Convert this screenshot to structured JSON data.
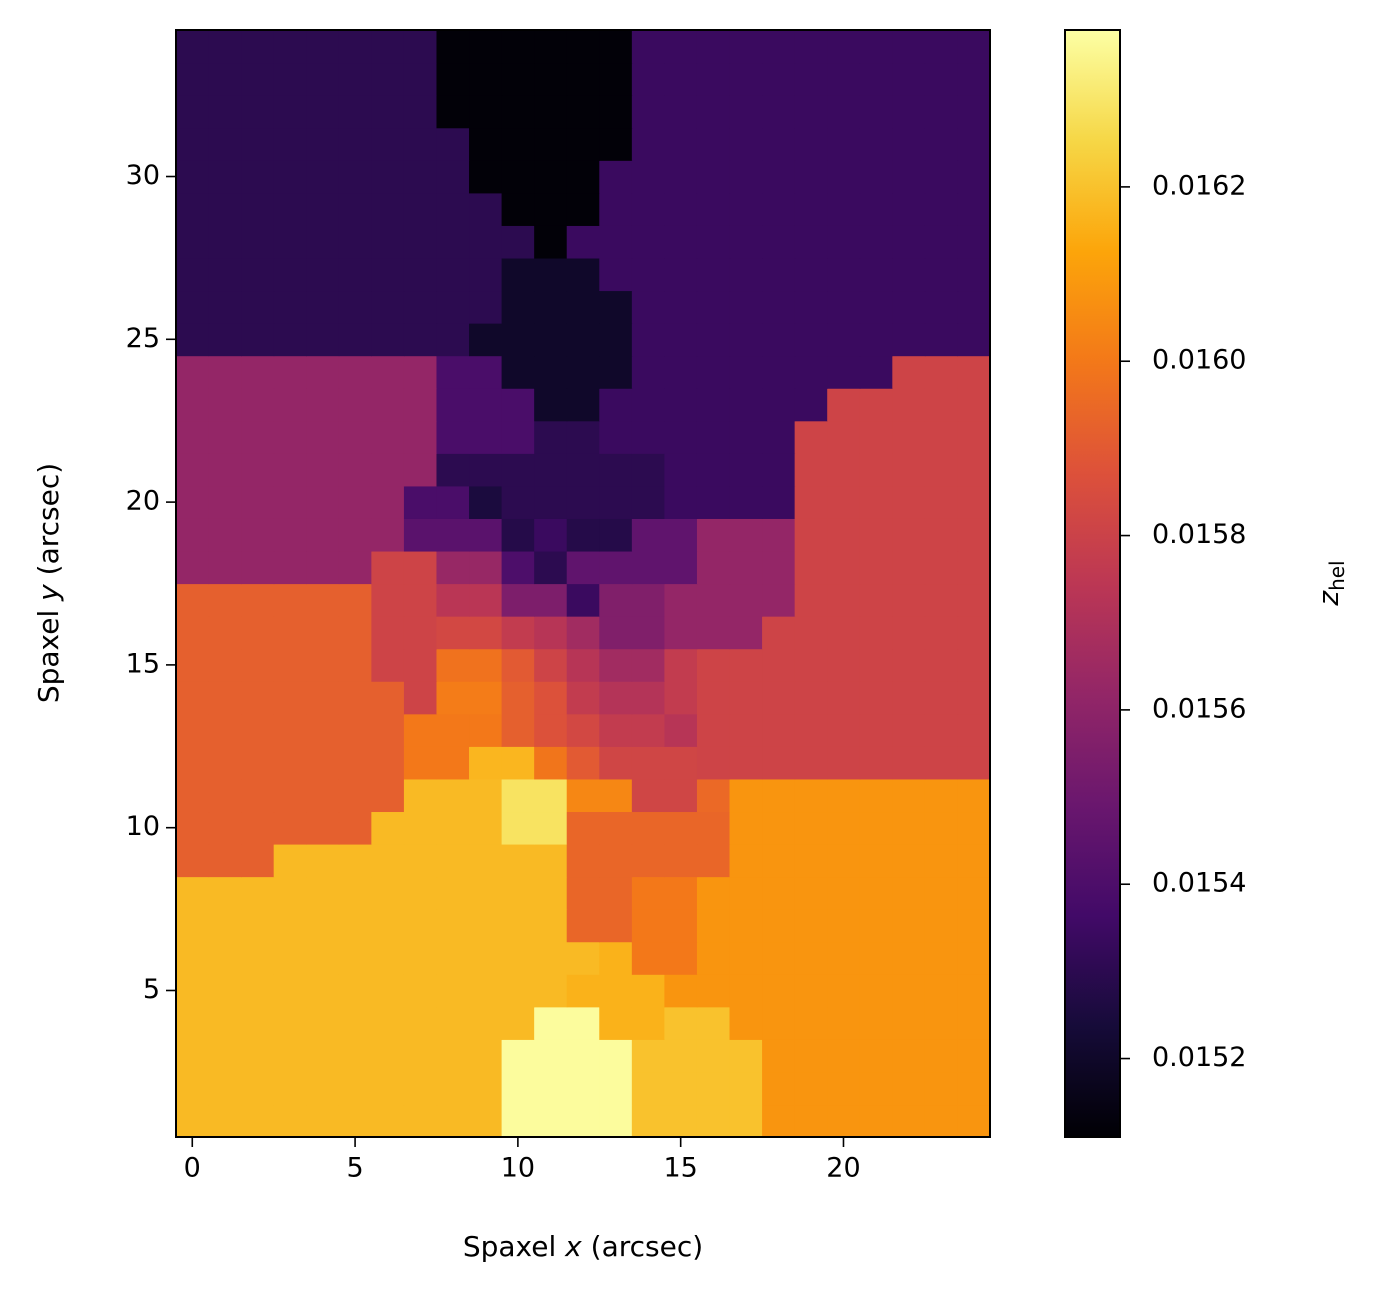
{
  "chart_data": {
    "type": "heatmap",
    "xlabel": [
      "Spaxel ",
      "x",
      " (arcsec)"
    ],
    "ylabel": [
      "Spaxel ",
      "y",
      " (arcsec)"
    ],
    "colorbar_label": "z",
    "colorbar_label_subscript": "hel",
    "colormap": "inferno",
    "x": [
      0,
      1,
      2,
      3,
      4,
      5,
      6,
      7,
      8,
      9,
      10,
      11,
      12,
      13,
      14,
      15,
      16,
      17,
      18,
      19,
      20,
      21,
      22,
      23,
      24
    ],
    "y": [
      1,
      2,
      3,
      4,
      5,
      6,
      7,
      8,
      9,
      10,
      11,
      12,
      13,
      14,
      15,
      16,
      17,
      18,
      19,
      20,
      21,
      22,
      23,
      24,
      25,
      26,
      27,
      28,
      29,
      30,
      31,
      32,
      33,
      34
    ],
    "xlim": [
      -0.5,
      24.5
    ],
    "ylim": [
      0.5,
      34.5
    ],
    "xticks": [
      0,
      5,
      10,
      15,
      20
    ],
    "yticks": [
      5,
      10,
      15,
      20,
      25,
      30
    ],
    "clim": [
      0.01511,
      0.01638
    ],
    "cticks": [
      0.0152,
      0.0154,
      0.0156,
      0.0158,
      {
        "value": 0.016,
        "label": "0.0160"
      },
      0.0162
    ],
    "z": [
      [
        0.01618,
        0.01618,
        0.01618,
        0.01618,
        0.01618,
        0.01618,
        0.01618,
        0.01618,
        0.01618,
        0.01618,
        0.01637,
        0.01637,
        0.01637,
        0.01637,
        0.0162,
        0.0162,
        0.0162,
        0.0162,
        0.01608,
        0.01608,
        0.01608,
        0.01608,
        0.01608,
        0.01608,
        0.01608
      ],
      [
        0.01618,
        0.01618,
        0.01618,
        0.01618,
        0.01618,
        0.01618,
        0.01618,
        0.01618,
        0.01618,
        0.01618,
        0.01637,
        0.01637,
        0.01637,
        0.01637,
        0.0162,
        0.0162,
        0.0162,
        0.0162,
        0.01608,
        0.01608,
        0.01608,
        0.01608,
        0.01608,
        0.01608,
        0.01608
      ],
      [
        0.01618,
        0.01618,
        0.01618,
        0.01618,
        0.01618,
        0.01618,
        0.01618,
        0.01618,
        0.01618,
        0.01618,
        0.01637,
        0.01637,
        0.01637,
        0.01637,
        0.0162,
        0.0162,
        0.0162,
        0.0162,
        0.01608,
        0.01608,
        0.01608,
        0.01608,
        0.01608,
        0.01608,
        0.01608
      ],
      [
        0.01618,
        0.01618,
        0.01618,
        0.01618,
        0.01618,
        0.01618,
        0.01618,
        0.01618,
        0.01618,
        0.01618,
        0.01618,
        0.01637,
        0.01637,
        0.01616,
        0.01616,
        0.0162,
        0.0162,
        0.01608,
        0.01608,
        0.01608,
        0.01608,
        0.01608,
        0.01608,
        0.01608,
        0.01608
      ],
      [
        0.01618,
        0.01618,
        0.01618,
        0.01618,
        0.01618,
        0.01618,
        0.01618,
        0.01618,
        0.01618,
        0.01618,
        0.01618,
        0.01618,
        0.01616,
        0.01616,
        0.01616,
        0.01608,
        0.01608,
        0.01608,
        0.01608,
        0.01608,
        0.01608,
        0.01608,
        0.01608,
        0.01608,
        0.01608
      ],
      [
        0.01618,
        0.01618,
        0.01618,
        0.01618,
        0.01618,
        0.01618,
        0.01618,
        0.01618,
        0.01618,
        0.01618,
        0.01618,
        0.01618,
        0.01618,
        0.01616,
        0.016,
        0.016,
        0.01608,
        0.01608,
        0.01608,
        0.01608,
        0.01608,
        0.01608,
        0.01608,
        0.01608,
        0.01608
      ],
      [
        0.01618,
        0.01618,
        0.01618,
        0.01618,
        0.01618,
        0.01618,
        0.01618,
        0.01618,
        0.01618,
        0.01618,
        0.01618,
        0.01618,
        0.01594,
        0.01594,
        0.016,
        0.016,
        0.01608,
        0.01608,
        0.01608,
        0.01608,
        0.01608,
        0.01608,
        0.01608,
        0.01608,
        0.01608
      ],
      [
        0.01618,
        0.01618,
        0.01618,
        0.01618,
        0.01618,
        0.01618,
        0.01618,
        0.01618,
        0.01618,
        0.01618,
        0.01618,
        0.01618,
        0.01594,
        0.01594,
        0.016,
        0.016,
        0.01608,
        0.01608,
        0.01608,
        0.01608,
        0.01608,
        0.01608,
        0.01608,
        0.01608,
        0.01608
      ],
      [
        0.01592,
        0.01592,
        0.01592,
        0.01618,
        0.01618,
        0.01618,
        0.01618,
        0.01618,
        0.01618,
        0.01618,
        0.01618,
        0.01618,
        0.01594,
        0.01594,
        0.01594,
        0.01594,
        0.01594,
        0.01608,
        0.01608,
        0.01608,
        0.01608,
        0.01608,
        0.01608,
        0.01608,
        0.01608
      ],
      [
        0.01592,
        0.01592,
        0.01592,
        0.01592,
        0.01592,
        0.01592,
        0.01618,
        0.01618,
        0.01618,
        0.01618,
        0.01629,
        0.01629,
        0.01594,
        0.01594,
        0.01594,
        0.01594,
        0.01594,
        0.01608,
        0.01608,
        0.01608,
        0.01608,
        0.01608,
        0.01608,
        0.01608,
        0.01608
      ],
      [
        0.01592,
        0.01592,
        0.01592,
        0.01592,
        0.01592,
        0.01592,
        0.01592,
        0.01618,
        0.01618,
        0.01618,
        0.01629,
        0.01629,
        0.01604,
        0.01604,
        0.01582,
        0.01582,
        0.01595,
        0.01608,
        0.01608,
        0.01608,
        0.01608,
        0.01608,
        0.01608,
        0.01608,
        0.01608
      ],
      [
        0.01592,
        0.01592,
        0.01592,
        0.01592,
        0.01592,
        0.01592,
        0.01592,
        0.016,
        0.016,
        0.01617,
        0.01617,
        0.01599,
        0.0159,
        0.01582,
        0.01582,
        0.01582,
        0.01581,
        0.01581,
        0.01581,
        0.01581,
        0.01581,
        0.01581,
        0.01581,
        0.01581,
        0.01581
      ],
      [
        0.01592,
        0.01592,
        0.01592,
        0.01592,
        0.01592,
        0.01592,
        0.01592,
        0.016,
        0.016,
        0.016,
        0.01592,
        0.01587,
        0.01583,
        0.01577,
        0.01577,
        0.01573,
        0.01581,
        0.01581,
        0.01581,
        0.01581,
        0.01581,
        0.01581,
        0.01581,
        0.01581,
        0.01581
      ],
      [
        0.01592,
        0.01592,
        0.01592,
        0.01592,
        0.01592,
        0.01592,
        0.01592,
        0.01581,
        0.01601,
        0.01601,
        0.01592,
        0.01587,
        0.01577,
        0.01572,
        0.01572,
        0.01577,
        0.01581,
        0.01581,
        0.01581,
        0.01581,
        0.01581,
        0.01581,
        0.01581,
        0.01581,
        0.01581
      ],
      [
        0.01592,
        0.01592,
        0.01592,
        0.01592,
        0.01592,
        0.01592,
        0.01581,
        0.01581,
        0.01598,
        0.01598,
        0.0159,
        0.01581,
        0.01573,
        0.01566,
        0.01566,
        0.01577,
        0.01581,
        0.01581,
        0.01581,
        0.01581,
        0.01581,
        0.01581,
        0.01581,
        0.01581,
        0.01581
      ],
      [
        0.01592,
        0.01592,
        0.01592,
        0.01592,
        0.01592,
        0.01592,
        0.01581,
        0.01581,
        0.01583,
        0.01583,
        0.01577,
        0.01573,
        0.01566,
        0.01556,
        0.01556,
        0.01562,
        0.01562,
        0.01562,
        0.01581,
        0.01581,
        0.01581,
        0.01581,
        0.01581,
        0.01581,
        0.01581
      ],
      [
        0.01592,
        0.01592,
        0.01592,
        0.01592,
        0.01592,
        0.01592,
        0.01581,
        0.01581,
        0.01574,
        0.01574,
        0.01555,
        0.01555,
        0.01534,
        0.01556,
        0.01556,
        0.01562,
        0.01562,
        0.01562,
        0.01562,
        0.01581,
        0.01581,
        0.01581,
        0.01581,
        0.01581,
        0.01581
      ],
      [
        0.01562,
        0.01562,
        0.01562,
        0.01562,
        0.01562,
        0.01562,
        0.01581,
        0.01581,
        0.01563,
        0.01563,
        0.0154,
        0.0153,
        0.01546,
        0.01546,
        0.01546,
        0.01546,
        0.01562,
        0.01562,
        0.01562,
        0.01581,
        0.01581,
        0.01581,
        0.01581,
        0.01581,
        0.01581
      ],
      [
        0.01562,
        0.01562,
        0.01562,
        0.01562,
        0.01562,
        0.01562,
        0.01562,
        0.01544,
        0.01544,
        0.01544,
        0.01528,
        0.01534,
        0.01528,
        0.01528,
        0.01546,
        0.01546,
        0.01562,
        0.01562,
        0.01562,
        0.01581,
        0.01581,
        0.01581,
        0.01581,
        0.01581,
        0.01581
      ],
      [
        0.01562,
        0.01562,
        0.01562,
        0.01562,
        0.01562,
        0.01562,
        0.01562,
        0.01539,
        0.01539,
        0.01525,
        0.0153,
        0.0153,
        0.0153,
        0.0153,
        0.0153,
        0.01534,
        0.01534,
        0.01534,
        0.01534,
        0.01581,
        0.01581,
        0.01581,
        0.01581,
        0.01581,
        0.01581
      ],
      [
        0.01562,
        0.01562,
        0.01562,
        0.01562,
        0.01562,
        0.01562,
        0.01562,
        0.01562,
        0.0153,
        0.0153,
        0.0153,
        0.0153,
        0.0153,
        0.0153,
        0.0153,
        0.01534,
        0.01534,
        0.01534,
        0.01534,
        0.01581,
        0.01581,
        0.01581,
        0.01581,
        0.01581,
        0.01581
      ],
      [
        0.01562,
        0.01562,
        0.01562,
        0.01562,
        0.01562,
        0.01562,
        0.01562,
        0.01562,
        0.01539,
        0.01539,
        0.01539,
        0.0153,
        0.0153,
        0.01534,
        0.01534,
        0.01534,
        0.01534,
        0.01534,
        0.01534,
        0.01581,
        0.01581,
        0.01581,
        0.01581,
        0.01581,
        0.01581
      ],
      [
        0.01562,
        0.01562,
        0.01562,
        0.01562,
        0.01562,
        0.01562,
        0.01562,
        0.01562,
        0.01539,
        0.01539,
        0.01539,
        0.0152,
        0.0152,
        0.01534,
        0.01534,
        0.01534,
        0.01534,
        0.01534,
        0.01534,
        0.01534,
        0.01581,
        0.01581,
        0.01581,
        0.01581,
        0.01581
      ],
      [
        0.01562,
        0.01562,
        0.01562,
        0.01562,
        0.01562,
        0.01562,
        0.01562,
        0.01562,
        0.01539,
        0.01539,
        0.0152,
        0.0152,
        0.0152,
        0.0152,
        0.01534,
        0.01534,
        0.01534,
        0.01534,
        0.01534,
        0.01534,
        0.01534,
        0.01534,
        0.01581,
        0.01581,
        0.01581
      ],
      [
        0.0153,
        0.0153,
        0.0153,
        0.0153,
        0.0153,
        0.0153,
        0.0153,
        0.0153,
        0.0153,
        0.0152,
        0.0152,
        0.0152,
        0.0152,
        0.0152,
        0.01534,
        0.01534,
        0.01534,
        0.01534,
        0.01534,
        0.01534,
        0.01534,
        0.01534,
        0.01534,
        0.01534,
        0.01534
      ],
      [
        0.0153,
        0.0153,
        0.0153,
        0.0153,
        0.0153,
        0.0153,
        0.0153,
        0.0153,
        0.0153,
        0.0153,
        0.0152,
        0.0152,
        0.0152,
        0.0152,
        0.01534,
        0.01534,
        0.01534,
        0.01534,
        0.01534,
        0.01534,
        0.01534,
        0.01534,
        0.01534,
        0.01534,
        0.01534
      ],
      [
        0.0153,
        0.0153,
        0.0153,
        0.0153,
        0.0153,
        0.0153,
        0.0153,
        0.0153,
        0.0153,
        0.0153,
        0.0152,
        0.0152,
        0.0152,
        0.01534,
        0.01534,
        0.01534,
        0.01534,
        0.01534,
        0.01534,
        0.01534,
        0.01534,
        0.01534,
        0.01534,
        0.01534,
        0.01534
      ],
      [
        0.0153,
        0.0153,
        0.0153,
        0.0153,
        0.0153,
        0.0153,
        0.0153,
        0.0153,
        0.0153,
        0.0153,
        0.0153,
        0.01512,
        0.01534,
        0.01534,
        0.01534,
        0.01534,
        0.01534,
        0.01534,
        0.01534,
        0.01534,
        0.01534,
        0.01534,
        0.01534,
        0.01534,
        0.01534
      ],
      [
        0.0153,
        0.0153,
        0.0153,
        0.0153,
        0.0153,
        0.0153,
        0.0153,
        0.0153,
        0.0153,
        0.0153,
        0.01512,
        0.01512,
        0.01512,
        0.01534,
        0.01534,
        0.01534,
        0.01534,
        0.01534,
        0.01534,
        0.01534,
        0.01534,
        0.01534,
        0.01534,
        0.01534,
        0.01534
      ],
      [
        0.0153,
        0.0153,
        0.0153,
        0.0153,
        0.0153,
        0.0153,
        0.0153,
        0.0153,
        0.0153,
        0.01512,
        0.01512,
        0.01512,
        0.01512,
        0.01534,
        0.01534,
        0.01534,
        0.01534,
        0.01534,
        0.01534,
        0.01534,
        0.01534,
        0.01534,
        0.01534,
        0.01534,
        0.01534
      ],
      [
        0.0153,
        0.0153,
        0.0153,
        0.0153,
        0.0153,
        0.0153,
        0.0153,
        0.0153,
        0.0153,
        0.01512,
        0.01512,
        0.01512,
        0.01512,
        0.01512,
        0.01534,
        0.01534,
        0.01534,
        0.01534,
        0.01534,
        0.01534,
        0.01534,
        0.01534,
        0.01534,
        0.01534,
        0.01534
      ],
      [
        0.0153,
        0.0153,
        0.0153,
        0.0153,
        0.0153,
        0.0153,
        0.0153,
        0.0153,
        0.01512,
        0.01512,
        0.01512,
        0.01512,
        0.01512,
        0.01512,
        0.01534,
        0.01534,
        0.01534,
        0.01534,
        0.01534,
        0.01534,
        0.01534,
        0.01534,
        0.01534,
        0.01534,
        0.01534
      ],
      [
        0.0153,
        0.0153,
        0.0153,
        0.0153,
        0.0153,
        0.0153,
        0.0153,
        0.0153,
        0.01512,
        0.01512,
        0.01512,
        0.01512,
        0.01512,
        0.01512,
        0.01534,
        0.01534,
        0.01534,
        0.01534,
        0.01534,
        0.01534,
        0.01534,
        0.01534,
        0.01534,
        0.01534,
        0.01534
      ],
      [
        0.0153,
        0.0153,
        0.0153,
        0.0153,
        0.0153,
        0.0153,
        0.0153,
        0.0153,
        0.01512,
        0.01512,
        0.01512,
        0.01512,
        0.01512,
        0.01512,
        0.01534,
        0.01534,
        0.01534,
        0.01534,
        0.01534,
        0.01534,
        0.01534,
        0.01534,
        0.01534,
        0.01534,
        0.01534
      ]
    ]
  }
}
